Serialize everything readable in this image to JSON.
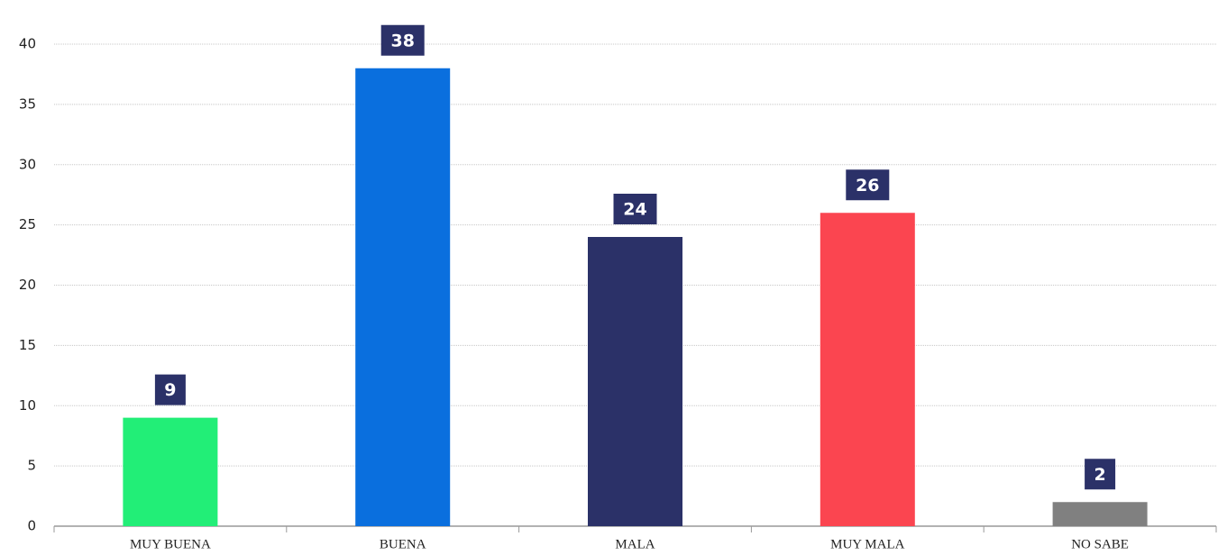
{
  "chart_data": {
    "type": "bar",
    "categories": [
      "MUY BUENA",
      "BUENA",
      "MALA",
      "MUY MALA",
      "NO SABE"
    ],
    "values": [
      9,
      38,
      24,
      26,
      2
    ],
    "colors": [
      "#22ee77",
      "#0a6fde",
      "#2b3168",
      "#fb4550",
      "#808080"
    ],
    "label_color": "#2b3168",
    "ylim": [
      0,
      40
    ],
    "yticks": [
      0,
      5,
      10,
      15,
      20,
      25,
      30,
      35,
      40
    ],
    "grid": true
  }
}
